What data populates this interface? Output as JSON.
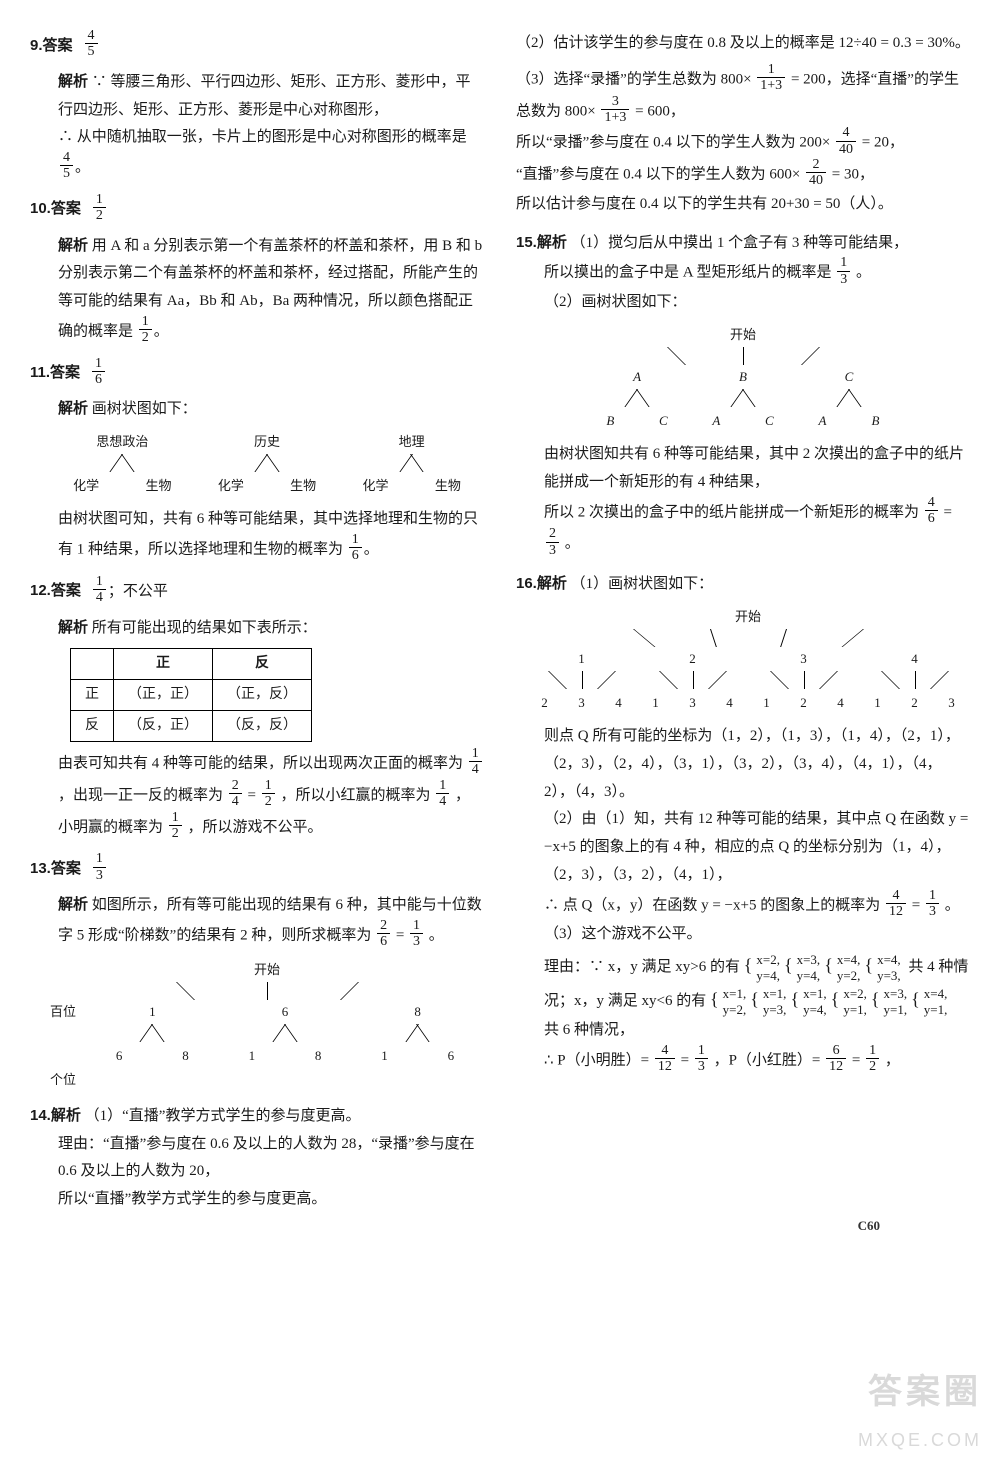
{
  "colors": {
    "text": "#1a1a1a",
    "bg": "#ffffff",
    "border": "#000000",
    "watermark": "#d9d9d9"
  },
  "page_number": "C60",
  "watermark": {
    "line1": "答案圈",
    "line2": "MXQE.COM"
  },
  "q9": {
    "num": "9.",
    "label_ans": "答案",
    "ans": {
      "n": "4",
      "d": "5"
    },
    "label_exp": "解析",
    "p1": "∵ 等腰三角形、平行四边形、矩形、正方形、菱形中，平行四边形、矩形、正方形、菱形是中心对称图形，",
    "p2_a": "∴ 从中随机抽取一张，卡片上的图形是中心对称图形的概率是",
    "p2_f": {
      "n": "4",
      "d": "5"
    },
    "p2_b": "。"
  },
  "q10": {
    "num": "10.",
    "label_ans": "答案",
    "ans": {
      "n": "1",
      "d": "2"
    },
    "label_exp": "解析",
    "p1": "用 A 和 a 分别表示第一个有盖茶杯的杯盖和茶杯，用 B 和 b 分别表示第二个有盖茶杯的杯盖和茶杯，经过搭配，所能产生的等可能的结果有 Aa，Bb 和 Ab，Ba 两种情况，所以颜色搭配正确的概率是",
    "p1_f": {
      "n": "1",
      "d": "2"
    },
    "p1_b": "。"
  },
  "q11": {
    "num": "11.",
    "label_ans": "答案",
    "ans": {
      "n": "1",
      "d": "6"
    },
    "label_exp": "解析",
    "tree_title": "画树状图如下：",
    "tree": {
      "level1": [
        "思想政治",
        "历史",
        "地理"
      ],
      "level2": [
        "化学",
        "生物",
        "化学",
        "生物",
        "化学",
        "生物"
      ]
    },
    "p1_a": "由树状图可知，共有 6 种等可能结果，其中选择地理和生物的只有 1 种结果，所以选择地理和生物的概率为",
    "p1_f": {
      "n": "1",
      "d": "6"
    },
    "p1_b": "。"
  },
  "q12": {
    "num": "12.",
    "label_ans": "答案",
    "ans": {
      "n": "1",
      "d": "4"
    },
    "ans_extra": "；不公平",
    "label_exp": "解析",
    "intro": "所有可能出现的结果如下表所示：",
    "table": {
      "cols": [
        "",
        "正",
        "反"
      ],
      "rows": [
        [
          "正",
          "（正，正）",
          "（正，反）"
        ],
        [
          "反",
          "（反，正）",
          "（反，反）"
        ]
      ]
    },
    "p1_a": "由表可知共有 4 种等可能的结果，所以出现两次正面的概率为",
    "f1": {
      "n": "1",
      "d": "4"
    },
    "p1_b": "，出现一正一反的概率为",
    "f2": {
      "n": "2",
      "d": "4"
    },
    "p1_c": " = ",
    "f3": {
      "n": "1",
      "d": "2"
    },
    "p1_d": "，所以小红赢的概率为",
    "f4": {
      "n": "1",
      "d": "4"
    },
    "p1_e": "，小明赢的概率为",
    "f5": {
      "n": "1",
      "d": "2"
    },
    "p1_f": "，所以游戏不公平。"
  },
  "q13": {
    "num": "13.",
    "label_ans": "答案",
    "ans": {
      "n": "1",
      "d": "3"
    },
    "label_exp": "解析",
    "p1_a": "如图所示，所有等可能出现的结果有 6 种，其中能与十位数字 5 形成“阶梯数”的结果有 2 种，则所求概率为",
    "f1": {
      "n": "2",
      "d": "6"
    },
    "eq": " = ",
    "f2": {
      "n": "1",
      "d": "3"
    },
    "p1_b": "。",
    "tree": {
      "root": "开始",
      "row_label_l": "百位",
      "level1": [
        "1",
        "6",
        "8"
      ],
      "row_label_b": "个位",
      "level2": [
        [
          "6",
          "8"
        ],
        [
          "1",
          "8"
        ],
        [
          "1",
          "6"
        ]
      ]
    }
  },
  "q14": {
    "num": "14.",
    "label": "解析",
    "p1": "（1）“直播”教学方式学生的参与度更高。",
    "p2": "理由：“直播”参与度在 0.6 及以上的人数为 28，“录播”参与度在 0.6 及以上的人数为 20，",
    "p3": "所以“直播”教学方式学生的参与度更高。",
    "p4": "（2）估计该学生的参与度在 0.8 及以上的概率是 12÷40 = 0.3 = 30%。",
    "p5_a": "（3）选择“录播”的学生总数为 800×",
    "f1": {
      "n": "1",
      "d": "1+3"
    },
    "p5_b": " = 200，选择“直播”的学生总数为 800×",
    "f2": {
      "n": "3",
      "d": "1+3"
    },
    "p5_c": " = 600，",
    "p6_a": "所以“录播”参与度在 0.4 以下的学生人数为 200×",
    "f3": {
      "n": "4",
      "d": "40"
    },
    "p6_b": " = 20，",
    "p7_a": "“直播”参与度在 0.4 以下的学生人数为 600×",
    "f4": {
      "n": "2",
      "d": "40"
    },
    "p7_b": " = 30，",
    "p8": "所以估计参与度在 0.4 以下的学生共有 20+30 = 50（人）。"
  },
  "q15": {
    "num": "15.",
    "label": "解析",
    "p1": "（1）搅匀后从中摸出 1 个盒子有 3 种等可能结果，",
    "p2_a": "所以摸出的盒子中是 A 型矩形纸片的概率是",
    "f1": {
      "n": "1",
      "d": "3"
    },
    "p2_b": "。",
    "p3": "（2）画树状图如下：",
    "tree": {
      "root": "开始",
      "level1": [
        "A",
        "B",
        "C"
      ],
      "level2": [
        [
          "B",
          "C"
        ],
        [
          "A",
          "C"
        ],
        [
          "A",
          "B"
        ]
      ]
    },
    "p4": "由树状图知共有 6 种等可能结果，其中 2 次摸出的盒子中的纸片能拼成一个新矩形的有 4 种结果，",
    "p5_a": "所以 2 次摸出的盒子中的纸片能拼成一个新矩形的概率为",
    "f2": {
      "n": "4",
      "d": "6"
    },
    "eq": " = ",
    "f3": {
      "n": "2",
      "d": "3"
    },
    "p5_b": "。"
  },
  "q16": {
    "num": "16.",
    "label": "解析",
    "p1": "（1）画树状图如下：",
    "tree": {
      "root": "开始",
      "level1": [
        "1",
        "2",
        "3",
        "4"
      ],
      "level2": [
        [
          "2",
          "3",
          "4"
        ],
        [
          "1",
          "3",
          "4"
        ],
        [
          "1",
          "2",
          "4"
        ],
        [
          "1",
          "2",
          "3"
        ]
      ]
    },
    "p2": "则点 Q 所有可能的坐标为（1，2），（1，3），（1，4），（2，1），（2，3），（2，4），（3，1），（3，2），（3，4），（4，1），（4，2），（4，3）。",
    "p3": "（2）由（1）知，共有 12 种等可能的结果，其中点 Q 在函数 y = −x+5 的图象上的有 4 种，相应的点 Q 的坐标分别为（1，4），（2，3），（3，2），（4，1），",
    "p4_a": "∴ 点 Q（x，y）在函数 y = −x+5 的图象上的概率为",
    "f1": {
      "n": "4",
      "d": "12"
    },
    "eq": " = ",
    "f2": {
      "n": "1",
      "d": "3"
    },
    "p4_b": "。",
    "p5": "（3）这个游戏不公平。",
    "p6_a": "理由：∵ x，y 满足 xy>6 的有",
    "sys_gt": [
      "x=2,\\y=4,",
      "x=3,\\y=4,",
      "x=4,\\y=2,",
      "x=4,\\y=3,"
    ],
    "p6_b": "共 4 种情况；x，y 满足 xy<6 的有",
    "sys_lt": [
      "x=1,\\y=2,",
      "x=1,\\y=3,",
      "x=1,\\y=4,",
      "x=2,\\y=1,",
      "x=3,\\y=1,",
      "x=4,\\y=1,"
    ],
    "p6_c": "共 6 种情况，",
    "p7_a": "∴ P（小明胜）= ",
    "f3": {
      "n": "4",
      "d": "12"
    },
    "eq2": " = ",
    "f4": {
      "n": "1",
      "d": "3"
    },
    "p7_b": "，P（小红胜）= ",
    "f5": {
      "n": "6",
      "d": "12"
    },
    "eq3": " = ",
    "f6": {
      "n": "1",
      "d": "2"
    },
    "p7_c": "，"
  }
}
